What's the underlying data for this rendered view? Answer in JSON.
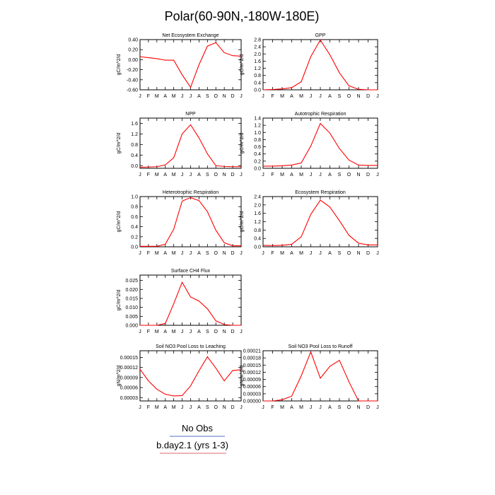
{
  "page": {
    "title": "Polar(60-90N,-180W-180E)"
  },
  "legend": {
    "entries": [
      {
        "label": "No Obs",
        "color": "#4d6fc4"
      },
      {
        "label": "b.day2.1 (yrs 1-3)",
        "color": "#e06a6a"
      }
    ]
  },
  "months": [
    "J",
    "F",
    "M",
    "A",
    "M",
    "J",
    "J",
    "A",
    "S",
    "O",
    "N",
    "D",
    "J"
  ],
  "chart_data": [
    {
      "type": "line",
      "title": "Net Ecosystem Exchange",
      "ylabel": "gC/m^2/d",
      "ylim": [
        -0.6,
        0.4
      ],
      "yticks": [
        "0.40",
        "0.20",
        "0.00",
        "-0.20",
        "-0.40",
        "-0.60"
      ],
      "yticks_values": [
        0.4,
        0.2,
        0.0,
        -0.2,
        -0.4,
        -0.6
      ],
      "series": [
        {
          "color": "#ff0000",
          "values": [
            0.06,
            0.04,
            0.02,
            -0.01,
            -0.01,
            -0.3,
            -0.55,
            -0.1,
            0.27,
            0.34,
            0.14,
            0.08,
            0.07
          ]
        }
      ]
    },
    {
      "type": "line",
      "title": "GPP",
      "ylabel": "gC/m^2/d",
      "ylim": [
        0,
        2.8
      ],
      "yticks": [
        "2.8",
        "2.4",
        "2.0",
        "1.6",
        "1.2",
        "0.8",
        "0.4",
        "0.0"
      ],
      "yticks_values": [
        2.8,
        2.4,
        2.0,
        1.6,
        1.2,
        0.8,
        0.4,
        0.0
      ],
      "series": [
        {
          "color": "#ff0000",
          "values": [
            0.0,
            0.02,
            0.05,
            0.12,
            0.45,
            1.85,
            2.78,
            1.95,
            0.95,
            0.22,
            0.03,
            0.0,
            0.0
          ]
        }
      ]
    },
    {
      "type": "line",
      "title": "NPP",
      "ylabel": "gC/m^2/d",
      "ylim": [
        -0.1,
        1.8
      ],
      "yticks": [
        "1.6",
        "1.2",
        "0.8",
        "0.4",
        "0.0"
      ],
      "yticks_values": [
        1.6,
        1.2,
        0.8,
        0.4,
        0.0
      ],
      "series": [
        {
          "color": "#ff0000",
          "values": [
            -0.06,
            -0.05,
            -0.04,
            0.03,
            0.3,
            1.2,
            1.55,
            1.05,
            0.45,
            0.0,
            -0.03,
            -0.04,
            -0.04
          ]
        }
      ]
    },
    {
      "type": "line",
      "title": "Autotrophic Respiration",
      "ylabel": "gC/m^2/d",
      "ylim": [
        0,
        1.4
      ],
      "yticks": [
        "1.4",
        "1.2",
        "1.0",
        "0.8",
        "0.6",
        "0.4",
        "0.2",
        "0.0"
      ],
      "yticks_values": [
        1.4,
        1.2,
        1.0,
        0.8,
        0.6,
        0.4,
        0.2,
        0.0
      ],
      "series": [
        {
          "color": "#ff0000",
          "values": [
            0.06,
            0.06,
            0.07,
            0.09,
            0.15,
            0.62,
            1.25,
            0.98,
            0.55,
            0.23,
            0.09,
            0.08,
            0.08
          ]
        }
      ]
    },
    {
      "type": "line",
      "title": "Heterotrophic Respiration",
      "ylabel": "gC/m^2/d",
      "ylim": [
        0,
        1.0
      ],
      "yticks": [
        "1.0",
        "0.8",
        "0.6",
        "0.4",
        "0.2",
        "0.0"
      ],
      "yticks_values": [
        1.0,
        0.8,
        0.6,
        0.4,
        0.2,
        0.0
      ],
      "series": [
        {
          "color": "#ff0000",
          "values": [
            0.01,
            0.01,
            0.01,
            0.05,
            0.35,
            0.91,
            0.98,
            0.92,
            0.7,
            0.33,
            0.08,
            0.02,
            0.02
          ]
        }
      ]
    },
    {
      "type": "line",
      "title": "Ecosystem Respiration",
      "ylabel": "gC/m^2/d",
      "ylim": [
        0,
        2.4
      ],
      "yticks": [
        "2.4",
        "2.0",
        "1.6",
        "1.2",
        "0.8",
        "0.4",
        "0.0"
      ],
      "yticks_values": [
        2.4,
        2.0,
        1.6,
        1.2,
        0.8,
        0.4,
        0.0
      ],
      "series": [
        {
          "color": "#ff0000",
          "values": [
            0.07,
            0.06,
            0.07,
            0.12,
            0.48,
            1.55,
            2.23,
            1.9,
            1.25,
            0.55,
            0.17,
            0.09,
            0.09
          ]
        }
      ]
    },
    {
      "type": "line",
      "title": "Surface CH4 Flux",
      "ylabel": "gC/m^2/d",
      "ylim": [
        0,
        0.028
      ],
      "yticks": [
        "0.025",
        "0.020",
        "0.015",
        "0.010",
        "0.005",
        "0.000"
      ],
      "yticks_values": [
        0.025,
        0.02,
        0.015,
        0.01,
        0.005,
        0.0
      ],
      "series": [
        {
          "color": "#ff0000",
          "values": [
            0.0,
            0.0,
            0.0,
            0.001,
            0.012,
            0.024,
            0.0158,
            0.0135,
            0.0092,
            0.0025,
            0.0004,
            0.0,
            0.0
          ]
        }
      ]
    },
    {
      "type": "line",
      "title": "Soil NO3 Pool Loss to Leaching",
      "ylabel": "gN/m^2/d",
      "ylim": [
        2e-05,
        0.00017
      ],
      "yticks": [
        "0.00015",
        "0.00012",
        "0.00009",
        "0.00006",
        "0.00003"
      ],
      "yticks_values": [
        0.00015,
        0.00012,
        9e-05,
        6e-05,
        3e-05
      ],
      "series": [
        {
          "color": "#ff0000",
          "values": [
            0.000115,
            8e-05,
            5.5e-05,
            4e-05,
            3.5e-05,
            3.6e-05,
            6.5e-05,
            0.00011,
            0.000152,
            0.000118,
            8e-05,
            0.000111,
            0.000113
          ]
        }
      ]
    },
    {
      "type": "line",
      "title": "Soil NO3 Pool Loss to Runoff",
      "ylabel": "gN/m^2/d",
      "ylim": [
        0,
        0.00021
      ],
      "yticks": [
        "0.00021",
        "0.00018",
        "0.00015",
        "0.00012",
        "0.00009",
        "0.00006",
        "0.00003",
        "0.00000"
      ],
      "yticks_values": [
        0.00021,
        0.00018,
        0.00015,
        0.00012,
        9e-05,
        6e-05,
        3e-05,
        0.0
      ],
      "series": [
        {
          "color": "#ff0000",
          "values": [
            0.0,
            0.0,
            5e-06,
            2e-05,
            0.000105,
            0.000205,
            9.5e-05,
            0.000145,
            0.00017,
            8e-05,
            0.0,
            0.0,
            0.0
          ]
        }
      ]
    }
  ]
}
